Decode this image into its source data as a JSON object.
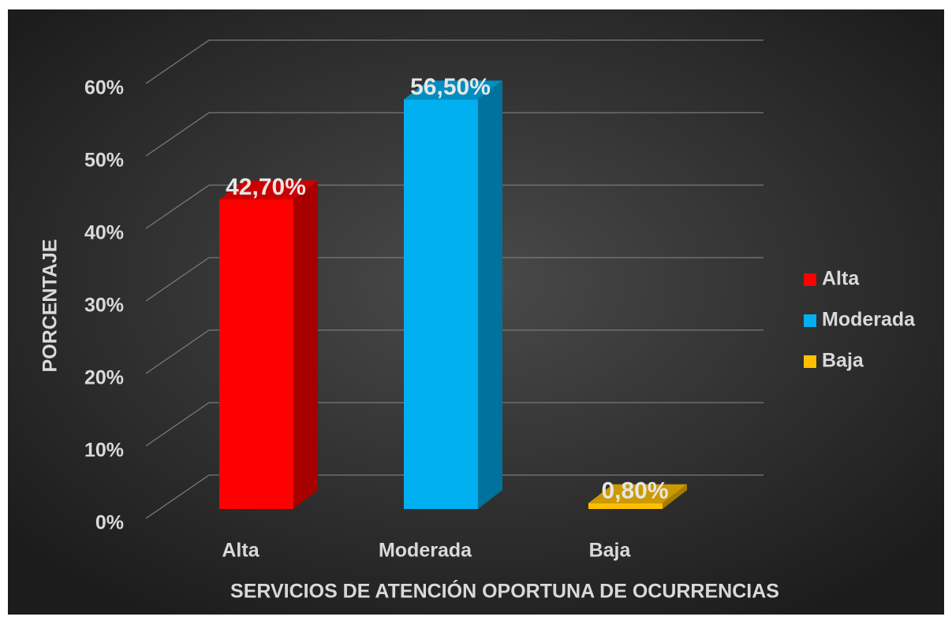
{
  "chart_data": {
    "type": "bar3d",
    "categories": [
      "Alta",
      "Moderada",
      "Baja"
    ],
    "values": [
      42.7,
      56.5,
      0.8
    ],
    "value_labels": [
      "42,70%",
      "56,50%",
      "0,80%"
    ],
    "colors": [
      "#ff0000",
      "#00b0f0",
      "#ffc000"
    ],
    "ylim": [
      0,
      60
    ],
    "yticks": [
      {
        "value": 0,
        "label": "0%"
      },
      {
        "value": 10,
        "label": "10%"
      },
      {
        "value": 20,
        "label": "20%"
      },
      {
        "value": 30,
        "label": "30%"
      },
      {
        "value": 40,
        "label": "40%"
      },
      {
        "value": 50,
        "label": "50%"
      },
      {
        "value": 60,
        "label": "60%"
      }
    ],
    "y_label": "PORCENTAJE",
    "x_label": "SERVICIOS DE ATENCIÓN OPORTUNA DE OCURRENCIAS",
    "grid": true,
    "legend": "right"
  }
}
